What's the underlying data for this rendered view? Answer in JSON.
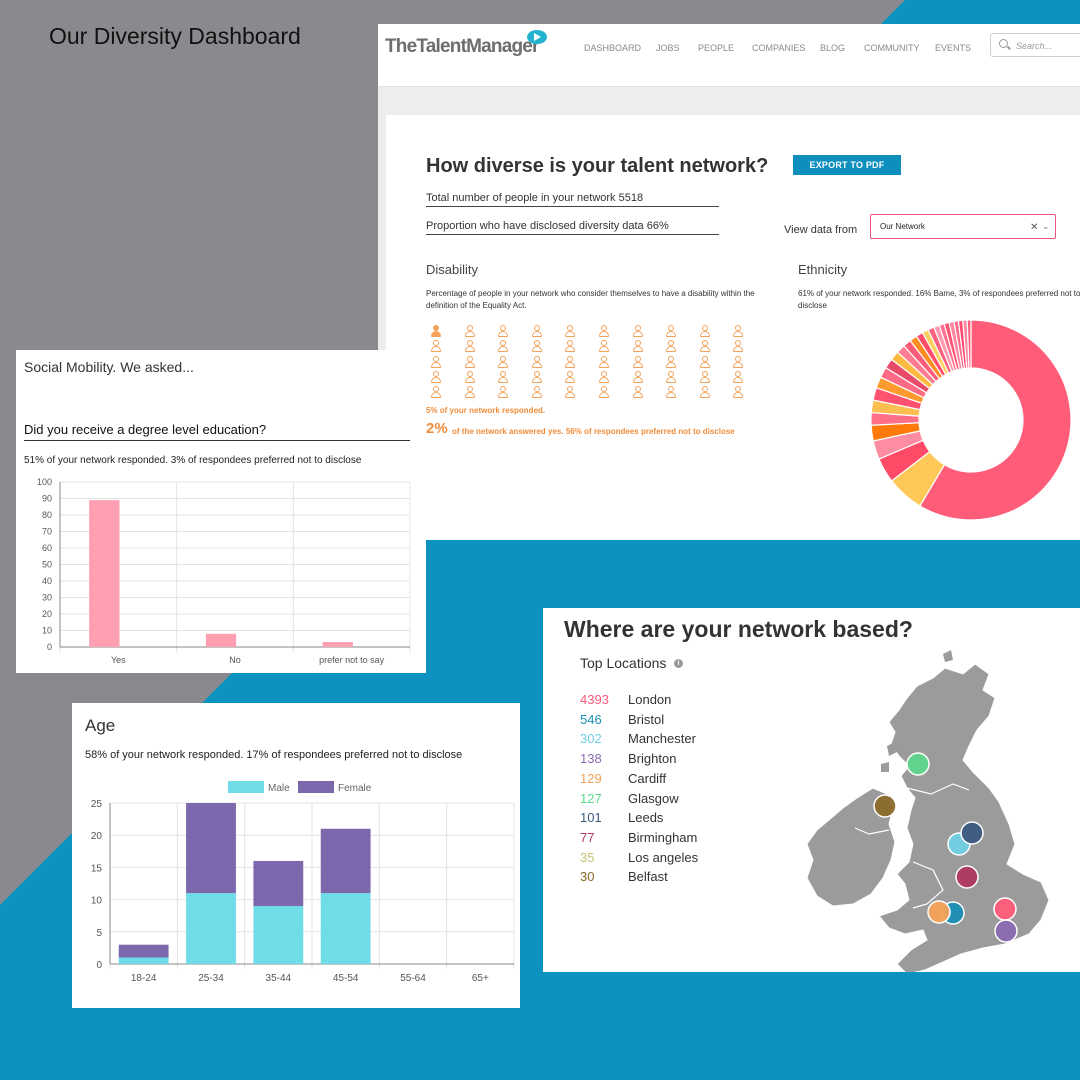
{
  "page_title": "Our Diversity Dashboard",
  "colors": {
    "background_blue": "#0c92bf",
    "background_grey": "#8a8a8e",
    "accent_pink": "#ff5c7a",
    "accent_orange": "#f4a259",
    "export_btn": "#0c8fbd"
  },
  "app": {
    "logo": "TheTalentManager",
    "nav": [
      "DASHBOARD",
      "JOBS",
      "PEOPLE",
      "COMPANIES",
      "BLOG",
      "COMMUNITY",
      "EVENTS"
    ],
    "search_placeholder": "Search...",
    "heading": "How diverse is your talent network?",
    "export_label": "EXPORT TO PDF",
    "total_people": "Total number of people in your network 5518",
    "proportion_disclosed": "Proportion who have disclosed diversity data 66%",
    "view_data_from_label": "View data from",
    "view_data_from_value": "Our Network",
    "disability": {
      "title": "Disability",
      "description": "Percentage of people in your network who consider themselves to have a disability within the definition of the Equality Act.",
      "responded": "5% of your network responded.",
      "percent_big": "2%",
      "answer_text": "of the network answered yes. 56% of respondees preferred not to disclose",
      "icons_total": 50,
      "icons_filled": 1
    },
    "ethnicity": {
      "title": "Ethnicity",
      "description": "61% of your network responded. 16% Bame, 3% of respondees preferred not to disclose"
    }
  },
  "social_mobility": {
    "title": "Social Mobility. We asked...",
    "question": "Did you receive a degree level education?",
    "note": "51% of your network responded. 3% of respondees preferred not to disclose"
  },
  "age": {
    "title": "Age",
    "note": "58% of your network responded. 17% of respondees preferred not to disclose"
  },
  "map": {
    "title": "Where are your network based?",
    "top_locations_label": "Top Locations",
    "info_glyph": "i",
    "locations": [
      {
        "count": "4393",
        "name": "London",
        "color": "#ff5c7a"
      },
      {
        "count": "546",
        "name": "Bristol",
        "color": "#1a8fb5"
      },
      {
        "count": "302",
        "name": "Manchester",
        "color": "#6fd0e3"
      },
      {
        "count": "138",
        "name": "Brighton",
        "color": "#8a6bb0"
      },
      {
        "count": "129",
        "name": "Cardiff",
        "color": "#f4a259"
      },
      {
        "count": "127",
        "name": "Glasgow",
        "color": "#5fd68c"
      },
      {
        "count": "101",
        "name": "Leeds",
        "color": "#3b5a80"
      },
      {
        "count": "77",
        "name": "Birmingham",
        "color": "#b0385e"
      },
      {
        "count": "35",
        "name": "Los angeles",
        "color": "#c8c474"
      },
      {
        "count": "30",
        "name": "Belfast",
        "color": "#8a6a2a"
      }
    ]
  },
  "chart_data": [
    {
      "type": "pie",
      "title": "Ethnicity",
      "values": [
        58,
        6,
        4,
        3,
        2.5,
        2,
        2,
        2,
        1.8,
        1.7,
        1.6,
        1.5,
        1.4,
        1.3,
        1.2,
        1.1,
        1,
        1,
        0.9,
        0.8,
        0.8,
        0.8,
        0.7,
        0.7,
        0.7,
        0.6
      ],
      "colors": [
        "#ff5c7a",
        "#ffc857",
        "#ff4a68",
        "#ff8da1",
        "#ff7a0a",
        "#ff6f87",
        "#ffbf50",
        "#ff5270",
        "#ff9a2e",
        "#ff6a84",
        "#e84a6a",
        "#ffb940",
        "#ff7d93",
        "#ff5c7a",
        "#ff8c20",
        "#ff4d6a",
        "#ffd060",
        "#ff6080",
        "#ff9ab0",
        "#ff7090",
        "#ff5572",
        "#ff86a0",
        "#ff6a86",
        "#ff4d70",
        "#ff8aa0",
        "#ff5f7d"
      ],
      "legend_position": "none"
    },
    {
      "type": "bar",
      "title": "Did you receive a degree level education?",
      "categories": [
        "Yes",
        "No",
        "prefer not to say"
      ],
      "values": [
        89,
        8,
        3
      ],
      "ylim": [
        0,
        100
      ],
      "yticks": [
        0,
        10,
        20,
        30,
        40,
        50,
        60,
        70,
        80,
        90,
        100
      ],
      "color": "#ff9fb2",
      "grid": true
    },
    {
      "type": "bar",
      "stacked": true,
      "title": "Age",
      "categories": [
        "18-24",
        "25-34",
        "35-44",
        "45-54",
        "55-64",
        "65+"
      ],
      "series": [
        {
          "name": "Male",
          "values": [
            1,
            11,
            9,
            11,
            0,
            0
          ],
          "color": "#6fdde8"
        },
        {
          "name": "Female",
          "values": [
            2,
            14,
            7,
            10,
            0,
            0
          ],
          "color": "#7b68ad"
        }
      ],
      "ylim": [
        0,
        25
      ],
      "yticks": [
        0,
        5,
        10,
        15,
        20,
        25
      ],
      "legend_position": "top",
      "grid": true
    }
  ]
}
